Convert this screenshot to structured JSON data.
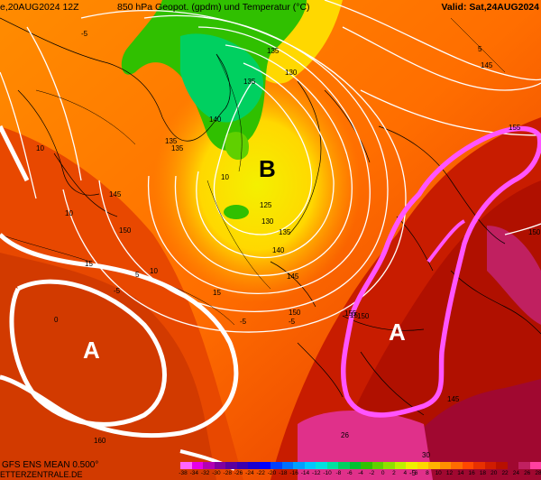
{
  "header": {
    "left": "e,20AUG2024 12Z",
    "center": "850 hPa Geopot. (gpdm) und Temperatur (°C)",
    "right": "Valid: Sat,24AUG2024"
  },
  "footer": {
    "model": "GFS ENS MEAN 0.500°",
    "source": "ETTERZENTRALE.DE"
  },
  "colorbar": {
    "ticks": [
      "-38",
      "-34",
      "-32",
      "-30",
      "-28",
      "-26",
      "-24",
      "-22",
      "-20",
      "-18",
      "-16",
      "-14",
      "-12",
      "-10",
      "-8",
      "-6",
      "-4",
      "-2",
      "0",
      "2",
      "4",
      "6",
      "8",
      "10",
      "12",
      "14",
      "16",
      "18",
      "20",
      "22",
      "24",
      "26",
      "28"
    ],
    "colors": [
      "#ff66ff",
      "#e600e6",
      "#b300b3",
      "#8000a0",
      "#5a00a0",
      "#3a00b0",
      "#1a00d0",
      "#0000ff",
      "#0040ff",
      "#0070ff",
      "#00a0ff",
      "#00c8ff",
      "#00e0e0",
      "#00e0a0",
      "#00d060",
      "#00c030",
      "#30c000",
      "#60d000",
      "#90e000",
      "#c0f000",
      "#f0f000",
      "#ffd800",
      "#ffb400",
      "#ff9000",
      "#ff6c00",
      "#ff4800",
      "#e83000",
      "#d01c00",
      "#b81000",
      "#a00830",
      "#c02060",
      "#ff40a0"
    ]
  },
  "systems": [
    {
      "letter": "B",
      "kind": "low"
    },
    {
      "letter": "A",
      "kind": "high"
    },
    {
      "letter": "A",
      "kind": "high"
    }
  ],
  "contour_labels": [
    "135",
    "130",
    "135",
    "140",
    "135",
    "135",
    "145",
    "150",
    "125",
    "130",
    "135",
    "140",
    "145",
    "150",
    "145",
    "155",
    "150",
    "160",
    "-5",
    "-5",
    "-5",
    "5",
    "-5",
    "0",
    "10",
    "10",
    "5",
    "10",
    "15",
    "10",
    "15",
    "26",
    "-5",
    "30",
    "15",
    "155",
    "150",
    "145"
  ],
  "colors": {
    "accent_high": "#ff55ff",
    "contour": "#ffffff"
  }
}
